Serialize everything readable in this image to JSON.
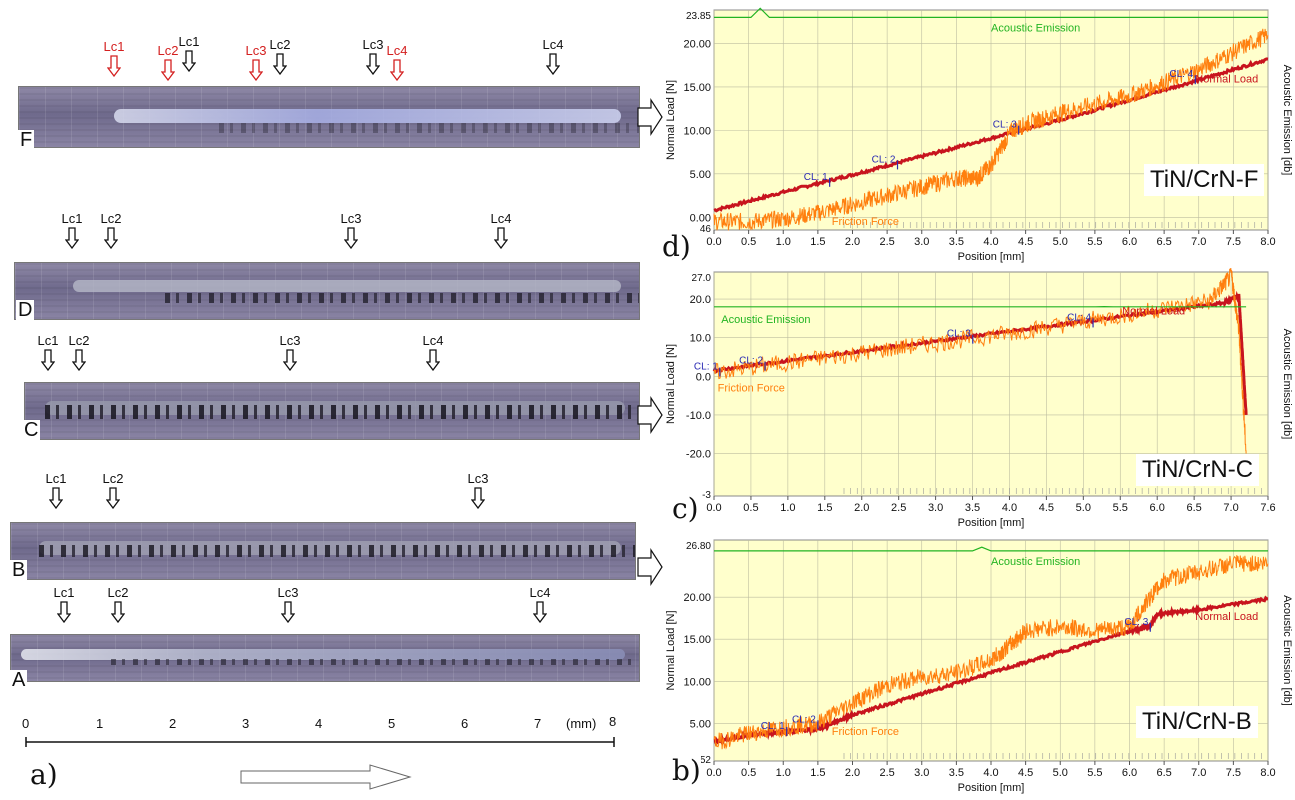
{
  "left": {
    "samples": [
      {
        "id": "F",
        "markers": [
          {
            "text": "Lc1",
            "color": "red"
          },
          {
            "text": "Lc2",
            "color": "red"
          },
          {
            "text": "Lc1",
            "color": "black"
          },
          {
            "text": "Lc3",
            "color": "red"
          },
          {
            "text": "Lc2",
            "color": "black"
          },
          {
            "text": "Lc3",
            "color": "black"
          },
          {
            "text": "Lc4",
            "color": "red"
          },
          {
            "text": "Lc4",
            "color": "black"
          }
        ]
      },
      {
        "id": "D",
        "markers": [
          {
            "text": "Lc1"
          },
          {
            "text": "Lc2"
          },
          {
            "text": "Lc3"
          },
          {
            "text": "Lc4"
          }
        ]
      },
      {
        "id": "C",
        "markers": [
          {
            "text": "Lc1"
          },
          {
            "text": "Lc2"
          },
          {
            "text": "Lc3"
          },
          {
            "text": "Lc4"
          }
        ]
      },
      {
        "id": "B",
        "markers": [
          {
            "text": "Lc1"
          },
          {
            "text": "Lc2"
          },
          {
            "text": "Lc3"
          }
        ]
      },
      {
        "id": "A",
        "markers": [
          {
            "text": "Lc1"
          },
          {
            "text": "Lc2"
          },
          {
            "text": "Lc3"
          },
          {
            "text": "Lc4"
          }
        ]
      }
    ],
    "scale": {
      "ticks": [
        "0",
        "1",
        "2",
        "3",
        "4",
        "5",
        "6",
        "7",
        "8"
      ],
      "unit": "(mm)"
    },
    "panel_label": "a)"
  },
  "colors": {
    "normal_load": "#c8141e",
    "friction": "#ff7f0e",
    "acoustic": "#22b422",
    "chart_bg": "#ffffcc",
    "grid": "#bdbda0",
    "cl_marker": "#2a2ab4"
  },
  "chart_data": [
    {
      "type": "line",
      "panel": "d)",
      "tag": "TiN/CrN-F",
      "xlabel": "Position [mm]",
      "ylabel": "Normal Load [N]",
      "y2label": "Acoustic Emission [db]",
      "xlim": [
        0,
        8.0
      ],
      "ylim": [
        -1.46,
        23.85
      ],
      "y_top_label": "23.85",
      "y_bottom_label": "46",
      "xticks": [
        "0.0",
        "0.5",
        "1.0",
        "1.5",
        "2.0",
        "2.5",
        "3.0",
        "3.5",
        "4.0",
        "4.5",
        "5.0",
        "5.5",
        "6.0",
        "6.5",
        "7.0",
        "7.5",
        "8.0"
      ],
      "yticks": [
        {
          "v": 0,
          "t": "0.00"
        },
        {
          "v": 5,
          "t": "5.00"
        },
        {
          "v": 10,
          "t": "10.00"
        },
        {
          "v": 15,
          "t": "15.00"
        },
        {
          "v": 20,
          "t": "20.00"
        }
      ],
      "series": [
        {
          "name": "Normal Load",
          "x": [
            0,
            1,
            2,
            3,
            4,
            5,
            6,
            7,
            8
          ],
          "y": [
            0.8,
            2.9,
            4.9,
            7.0,
            9.1,
            11.2,
            13.5,
            15.8,
            18.2
          ]
        },
        {
          "name": "Friction Force",
          "x": [
            0,
            0.5,
            1.0,
            1.5,
            2.0,
            2.5,
            3.0,
            3.5,
            3.8,
            4.0,
            4.3,
            4.6,
            5.0,
            5.5,
            6.0,
            6.5,
            7.0,
            7.5,
            8.0
          ],
          "y": [
            -0.5,
            -0.5,
            -0.2,
            0.5,
            1.5,
            2.5,
            3.5,
            4.5,
            4.5,
            6.0,
            10.0,
            11.0,
            12.0,
            13.0,
            14.0,
            15.5,
            17.0,
            19.0,
            21.0
          ]
        },
        {
          "name": "Acoustic Emission",
          "x": [
            0,
            8.0
          ],
          "y": [
            23.0,
            23.0
          ]
        }
      ],
      "critical_loads": [
        {
          "label": "CL: 1",
          "x": 1.67,
          "y": 4.2
        },
        {
          "label": "CL: 2",
          "x": 2.65,
          "y": 6.2
        },
        {
          "label": "CL: 3",
          "x": 4.4,
          "y": 10.2
        },
        {
          "label": "CL: 4",
          "x": 6.95,
          "y": 16.0
        }
      ]
    },
    {
      "type": "line",
      "panel": "c)",
      "tag": "TiN/CrN-C",
      "xlabel": "Position [mm]",
      "ylabel": "Normal Load [N]",
      "y2label": "Acoustic Emission [db]",
      "xlim": [
        0,
        7.6
      ],
      "ylim": [
        -31,
        27.0
      ],
      "y_top_label": "27.0",
      "y_bottom_label": "-3",
      "xticks": [
        "0.0",
        "0.5",
        "1.0",
        "1.5",
        "2.0",
        "2.5",
        "3.0",
        "3.5",
        "4.0",
        "4.5",
        "5.0",
        "5.5",
        "6.0",
        "6.5",
        "7.0",
        "7.6"
      ],
      "yticks": [
        {
          "v": 20,
          "t": "20.0"
        },
        {
          "v": 10,
          "t": "10.0"
        },
        {
          "v": 0,
          "t": "0.0"
        },
        {
          "v": -10,
          "t": "-10.0"
        },
        {
          "v": -20,
          "t": "-20.0"
        }
      ],
      "series": [
        {
          "name": "Normal Load",
          "x": [
            0,
            1,
            2,
            3,
            4,
            5,
            6,
            7.0,
            7.2,
            7.3
          ],
          "y": [
            1.5,
            4.0,
            6.5,
            9.0,
            11.5,
            14.0,
            16.5,
            19.0,
            21.0,
            -10.0
          ]
        },
        {
          "name": "Friction Force",
          "x": [
            0,
            1,
            2,
            3,
            4,
            5,
            6,
            6.8,
            7.1,
            7.2,
            7.3
          ],
          "y": [
            1.0,
            3.5,
            6.0,
            8.5,
            11.0,
            14.0,
            17.0,
            19.5,
            26.0,
            12.0,
            -20.0
          ]
        },
        {
          "name": "Acoustic Emission",
          "x": [
            0,
            7.3
          ],
          "y": [
            18.0,
            18.0
          ]
        }
      ],
      "critical_loads": [
        {
          "label": "CL: 1",
          "x": 0.08,
          "y": 1.5
        },
        {
          "label": "CL: 2",
          "x": 0.7,
          "y": 3.0
        },
        {
          "label": "CL: 3",
          "x": 3.55,
          "y": 10.0
        },
        {
          "label": "CL: 4",
          "x": 5.2,
          "y": 14.2
        }
      ]
    },
    {
      "type": "line",
      "panel": "b)",
      "tag": "TiN/CrN-B",
      "xlabel": "Position [mm]",
      "ylabel": "Normal Load [N]",
      "y2label": "Acoustic Emission [db]",
      "xlim": [
        0,
        8.0
      ],
      "ylim": [
        0.52,
        26.8
      ],
      "y_top_label": "26.80",
      "y_bottom_label": "52",
      "xticks": [
        "0.0",
        "0.5",
        "1.0",
        "1.5",
        "2.0",
        "2.5",
        "3.0",
        "3.5",
        "4.0",
        "4.5",
        "5.0",
        "5.5",
        "6.0",
        "6.5",
        "7.0",
        "7.5",
        "8.0"
      ],
      "yticks": [
        {
          "v": 5,
          "t": "5.00"
        },
        {
          "v": 10,
          "t": "10.00"
        },
        {
          "v": 15,
          "t": "15.00"
        },
        {
          "v": 20,
          "t": "20.00"
        }
      ],
      "series": [
        {
          "name": "Normal Load",
          "x": [
            0,
            0.5,
            1.0,
            1.5,
            2.0,
            3.0,
            4.0,
            5.0,
            6.0,
            6.3,
            6.4,
            7.0,
            8.0
          ],
          "y": [
            2.8,
            3.6,
            4.0,
            4.3,
            6.0,
            8.5,
            11.0,
            13.5,
            16.0,
            16.5,
            18.0,
            18.5,
            19.8
          ]
        },
        {
          "name": "Friction Force",
          "x": [
            0,
            0.5,
            1.0,
            1.5,
            2.0,
            2.5,
            3.0,
            3.5,
            4.0,
            4.3,
            4.5,
            5.0,
            5.5,
            6.0,
            6.3,
            6.5,
            7.0,
            7.5,
            8.0
          ],
          "y": [
            2.7,
            3.8,
            4.5,
            5.0,
            7.5,
            9.5,
            10.5,
            11.0,
            12.5,
            14.5,
            16.0,
            16.5,
            16.0,
            16.5,
            20.0,
            22.0,
            23.0,
            24.0,
            24.0
          ]
        },
        {
          "name": "Acoustic Emission",
          "x": [
            0,
            8.0
          ],
          "y": [
            25.5,
            25.5
          ]
        }
      ],
      "critical_loads": [
        {
          "label": "CL: 1",
          "x": 1.05,
          "y": 4.2
        },
        {
          "label": "CL: 2",
          "x": 1.5,
          "y": 5.0
        },
        {
          "label": "CL: 3",
          "x": 6.3,
          "y": 16.6
        }
      ]
    }
  ]
}
